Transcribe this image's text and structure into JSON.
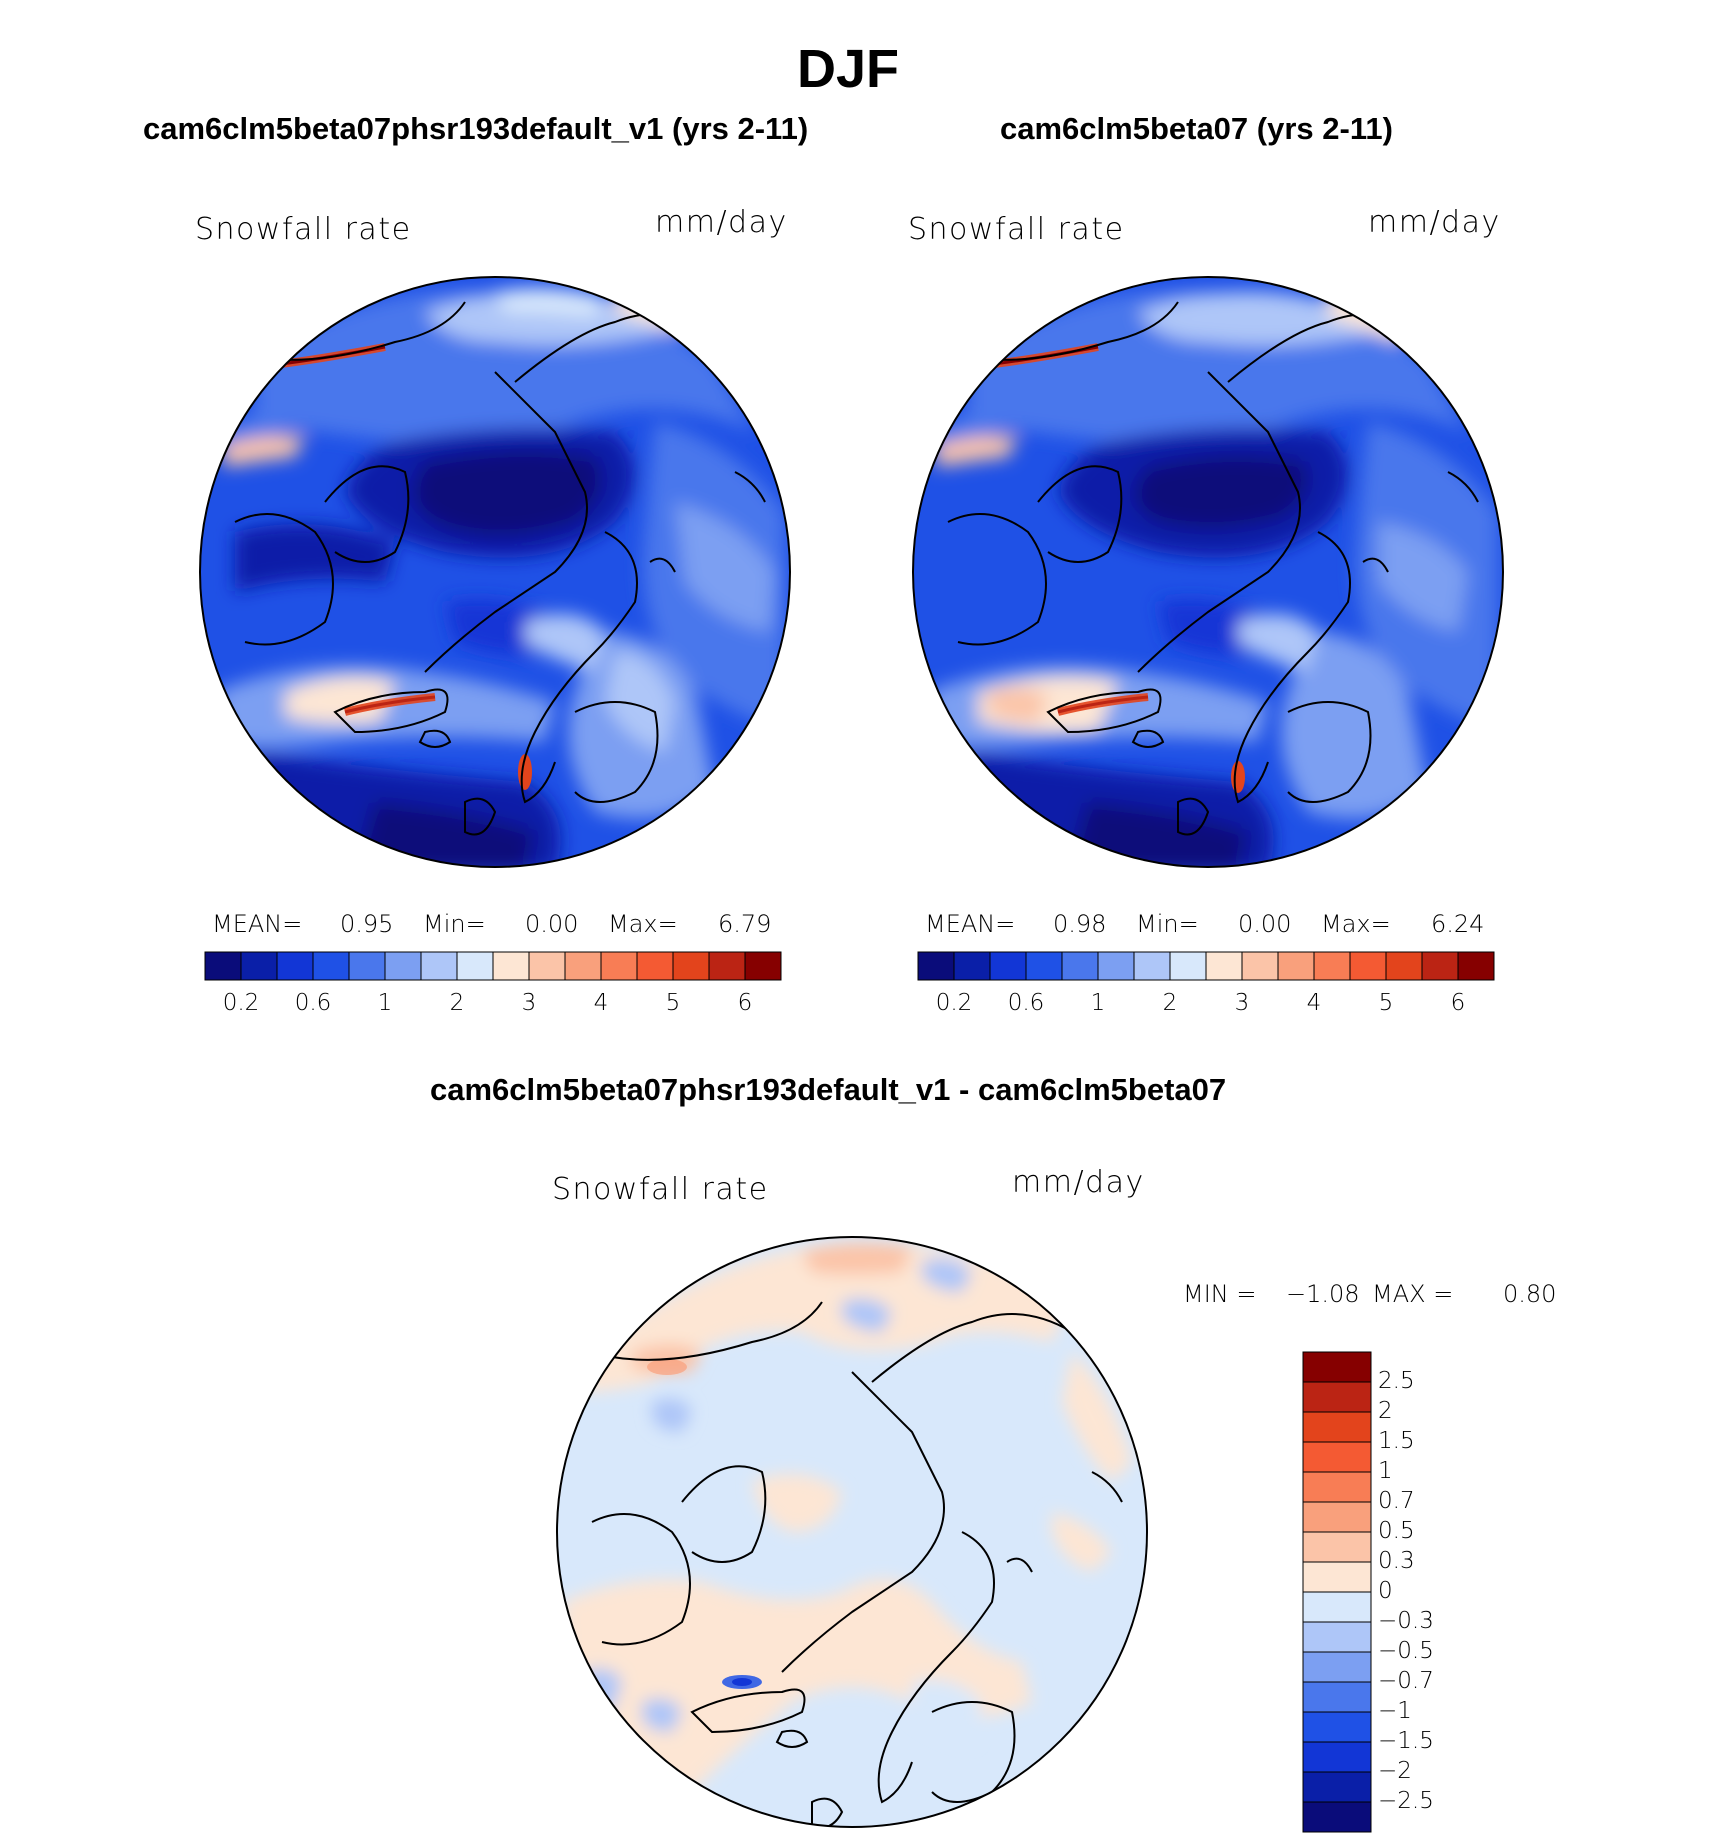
{
  "figure": {
    "season": "DJF",
    "title_left": "cam6clm5beta07phsr193default_v1 (yrs 2-11)",
    "title_right": "cam6clm5beta07 (yrs 2-11)",
    "title_diff": "cam6clm5beta07phsr193default_v1 - cam6clm5beta07"
  },
  "panels": [
    {
      "id": "left",
      "variable_label": "Snowfall rate",
      "units_label": "mm/day",
      "stats": {
        "mean_label": "MEAN=",
        "mean_value": "0.95",
        "min_label": "Min=",
        "min_value": "0.00",
        "max_label": "Max=",
        "max_value": "6.79"
      }
    },
    {
      "id": "right",
      "variable_label": "Snowfall rate",
      "units_label": "mm/day",
      "stats": {
        "mean_label": "MEAN=",
        "mean_value": "0.98",
        "min_label": "Min=",
        "min_value": "0.00",
        "max_label": "Max=",
        "max_value": "6.24"
      }
    },
    {
      "id": "diff",
      "variable_label": "Snowfall rate",
      "units_label": "mm/day",
      "stats": {
        "min_label": "MIN =",
        "min_value": "−1.08",
        "max_label": "MAX =",
        "max_value": "0.80"
      }
    }
  ],
  "colorbars": {
    "abs": {
      "colors": [
        "#0a0c7a",
        "#0a1fa8",
        "#1236d6",
        "#1f51e6",
        "#4a77ec",
        "#7c9ff2",
        "#aec6f8",
        "#d8e8fb",
        "#fde6d4",
        "#fbc4a8",
        "#f9a07c",
        "#f87d55",
        "#f45a33",
        "#e3441c",
        "#bb2414",
        "#860000"
      ],
      "tick_labels": [
        "0.2",
        "0.6",
        "1",
        "2",
        "3",
        "4",
        "5",
        "6"
      ]
    },
    "diff": {
      "colors": [
        "#0a0c7a",
        "#0a1fa8",
        "#1236d6",
        "#1f51e6",
        "#4a77ec",
        "#7c9ff2",
        "#aec6f8",
        "#d8e8fb",
        "#fde6d4",
        "#fbc4a8",
        "#f9a07c",
        "#f87d55",
        "#f45a33",
        "#e3441c",
        "#bb2414",
        "#860000"
      ],
      "tick_labels": [
        "−2.5",
        "−2",
        "−1.5",
        "−1",
        "−0.7",
        "−0.5",
        "−0.3",
        "0",
        "0.3",
        "0.5",
        "0.7",
        "1",
        "1.5",
        "2",
        "2.5"
      ]
    }
  }
}
